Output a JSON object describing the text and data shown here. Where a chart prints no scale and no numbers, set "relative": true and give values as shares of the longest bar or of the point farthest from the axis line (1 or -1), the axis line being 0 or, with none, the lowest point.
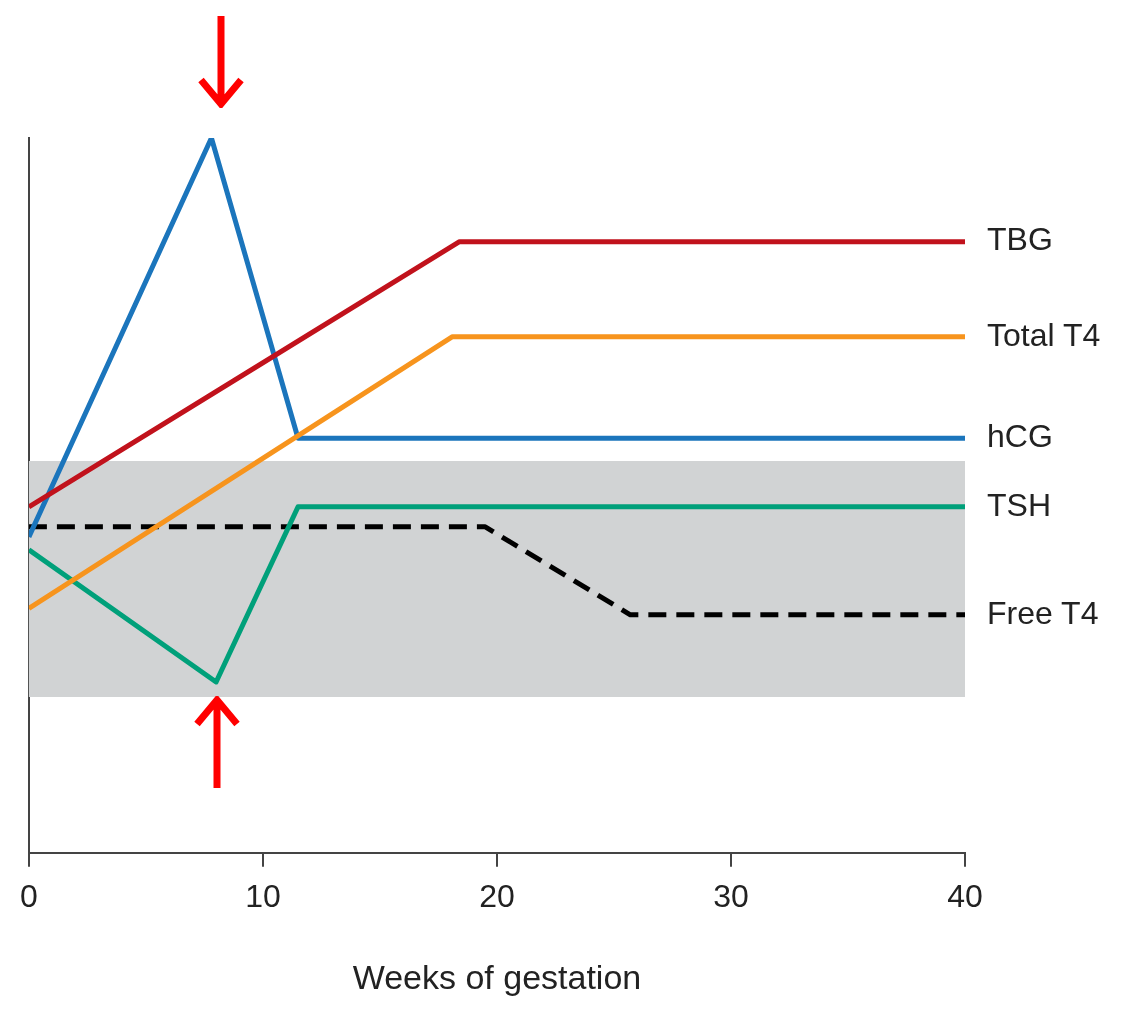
{
  "chart_data": {
    "type": "line",
    "relative": true,
    "xlabel": "Weeks of gestation",
    "xlim": [
      0,
      40
    ],
    "xticks": [
      0,
      10,
      20,
      30,
      40
    ],
    "legend": false,
    "marker": "none",
    "series": [
      {
        "name": "TBG",
        "color": "#c1121c",
        "x": [
          0,
          18.4,
          40
        ],
        "values": [
          0.484,
          0.855,
          0.855
        ]
      },
      {
        "name": "Total T4",
        "color": "#f7941d",
        "x": [
          0,
          18.1,
          40
        ],
        "values": [
          0.342,
          0.722,
          0.722
        ]
      },
      {
        "name": "hCG",
        "color": "#1b75bc",
        "x": [
          0,
          7.8,
          11.5,
          40
        ],
        "values": [
          0.442,
          1,
          0.58,
          0.58
        ]
      },
      {
        "name": "TSH",
        "color": "#00a07a",
        "x": [
          0,
          8,
          11.5,
          40
        ],
        "values": [
          0.424,
          0.239,
          0.484,
          0.484
        ]
      },
      {
        "name": "Free T4",
        "color": "#000000",
        "line_style": "dashed",
        "x": [
          0,
          19.5,
          25.7,
          40
        ],
        "values": [
          0.456,
          0.456,
          0.333,
          0.333
        ]
      }
    ],
    "bands": [
      {
        "axis": "y",
        "from": 0.218,
        "to": 0.548,
        "color": "#d1d3d4"
      }
    ]
  }
}
